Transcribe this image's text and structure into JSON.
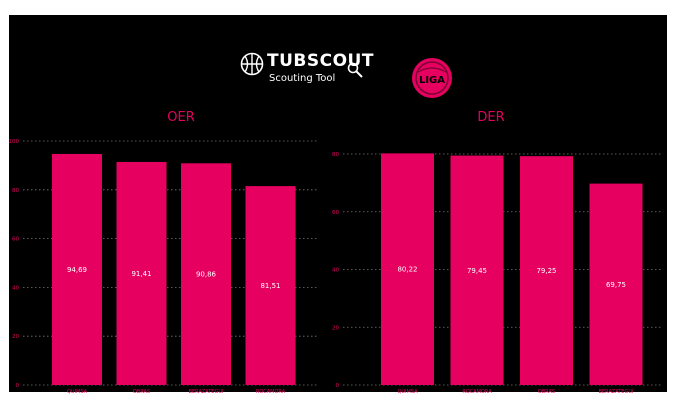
{
  "brand": {
    "title": "TUBSCOUT",
    "subtitle": "Scouting Tool",
    "league_logo_text": "LIGA"
  },
  "colors": {
    "background": "#000000",
    "bar": "#e6005f",
    "title": "#e6005f",
    "tick_label": "#e6005f",
    "category_label": "#e6005f",
    "gridline": "#777777",
    "value_label": "#ffffff"
  },
  "chart_data": [
    {
      "type": "bar",
      "title": "OER",
      "categories": [
        "QUIMSA",
        "OBRAS",
        "BERAZATEGUI",
        "ROCAMORA"
      ],
      "values": [
        94.69,
        91.41,
        90.86,
        81.51
      ],
      "data_labels": [
        "94,69",
        "91,41",
        "90,86",
        "81,51"
      ],
      "yticks": [
        "0",
        "20",
        "40",
        "60",
        "80",
        "100"
      ],
      "ylim": [
        0,
        100
      ],
      "grid": true
    },
    {
      "type": "bar",
      "title": "DER",
      "categories": [
        "QUIMSA",
        "ROCAMORA",
        "OBRAS",
        "BERAZATEGUI"
      ],
      "values": [
        80.22,
        79.45,
        79.25,
        69.75
      ],
      "data_labels": [
        "80,22",
        "79,45",
        "79,25",
        "69,75"
      ],
      "yticks": [
        "0",
        "20",
        "40",
        "60",
        "80"
      ],
      "ylim": [
        0,
        80
      ],
      "grid": true
    }
  ]
}
